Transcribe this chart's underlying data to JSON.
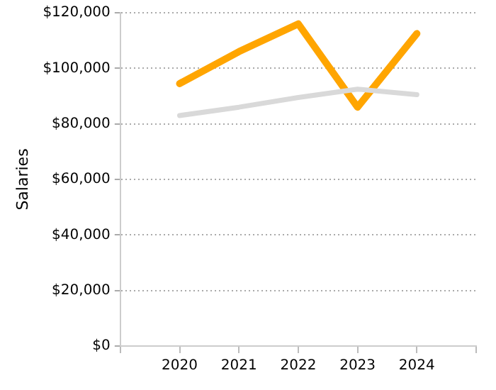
{
  "chart_data": {
    "type": "line",
    "ylabel": "Salaries",
    "x": [
      2020,
      2021,
      2022,
      2023,
      2024
    ],
    "series": [
      {
        "color": "#d9d9d9",
        "values": [
          83000,
          86000,
          89500,
          92500,
          90500
        ]
      },
      {
        "color": "#ffa500",
        "values": [
          94500,
          106000,
          116000,
          86000,
          112500
        ]
      }
    ],
    "xlim": [
      2019,
      2025
    ],
    "xticks": [
      {
        "value": 2019,
        "label": null
      },
      2020,
      2021,
      2022,
      2023,
      2024,
      {
        "value": 2025,
        "label": null
      }
    ],
    "ylim": [
      0,
      120000
    ],
    "yticks": [
      {
        "value": 0,
        "label": "$0"
      },
      {
        "value": 20000,
        "label": "$20,000"
      },
      {
        "value": 40000,
        "label": "$40,000"
      },
      {
        "value": 60000,
        "label": "$60,000"
      },
      {
        "value": 80000,
        "label": "$80,000"
      },
      {
        "value": 100000,
        "label": "$100,000"
      },
      {
        "value": 120000,
        "label": "$120,000"
      }
    ],
    "grid": "y",
    "legend": false,
    "marker": "none",
    "line_style": "solid"
  }
}
